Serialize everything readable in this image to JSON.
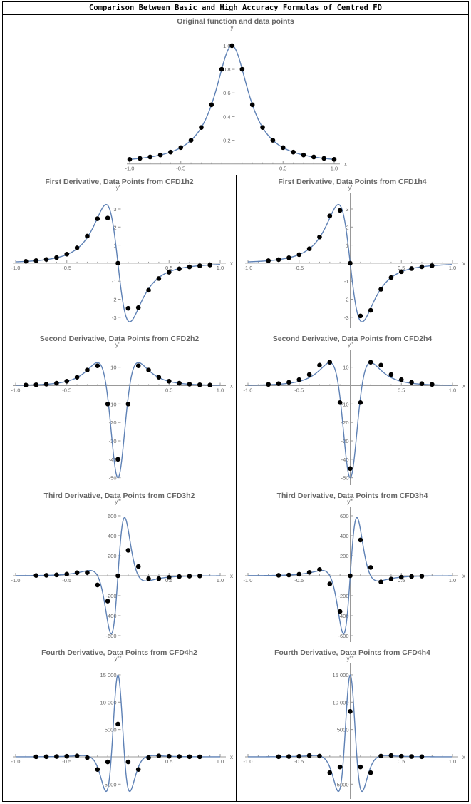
{
  "header": {
    "title": "Comparison Between Basic and High Accuracy Formulas of Centred FD"
  },
  "colors": {
    "curve": "#5e81b5",
    "points": "#000000",
    "axis": "#999999",
    "tick_label": "#666666",
    "plot_title": "#666666"
  },
  "chart_data": [
    {
      "id": "original",
      "type": "line+scatter",
      "title": "Original function and data points",
      "xlabel": "x",
      "ylabel": "y",
      "function": "1/(1+25x^2)",
      "derivative_order": 0,
      "xlim": [
        -1,
        1
      ],
      "ylim": [
        -0.08,
        1.09
      ],
      "xticks": [
        {
          "v": -1,
          "label": "-1.0"
        },
        {
          "v": -0.5,
          "label": "-0.5"
        },
        {
          "v": 0.5,
          "label": "0.5"
        },
        {
          "v": 1,
          "label": "1.0"
        }
      ],
      "yticks": [
        {
          "v": 0.2,
          "label": "0.2"
        },
        {
          "v": 0.4,
          "label": "0.4"
        },
        {
          "v": 0.6,
          "label": "0.6"
        },
        {
          "v": 0.8,
          "label": "0.8"
        },
        {
          "v": 1,
          "label": "1.0"
        }
      ],
      "points": {
        "x": [
          -1,
          -0.9,
          -0.8,
          -0.7,
          -0.6,
          -0.5,
          -0.4,
          -0.3,
          -0.2,
          -0.1,
          0,
          0.1,
          0.2,
          0.3,
          0.4,
          0.5,
          0.6,
          0.7,
          0.8,
          0.9,
          1
        ],
        "y": [
          0.0385,
          0.0471,
          0.0588,
          0.0755,
          0.1,
          0.1379,
          0.2,
          0.3077,
          0.5,
          0.8,
          1,
          0.8,
          0.5,
          0.3077,
          0.2,
          0.1379,
          0.1,
          0.0755,
          0.0588,
          0.0471,
          0.0385
        ]
      }
    },
    {
      "id": "d1h2",
      "type": "line+scatter",
      "title": "First Derivative, Data Points from CFD1h2",
      "xlabel": "x",
      "ylabel": "y'",
      "function": "1/(1+25x^2)",
      "derivative_order": 1,
      "xlim": [
        -1,
        1
      ],
      "ylim": [
        -3.6,
        3.75
      ],
      "xticks": [
        {
          "v": -1,
          "label": "-1.0"
        },
        {
          "v": -0.5,
          "label": "-0.5"
        },
        {
          "v": 0.5,
          "label": "0.5"
        },
        {
          "v": 1,
          "label": "1.0"
        }
      ],
      "yticks": [
        {
          "v": -3,
          "label": "-3"
        },
        {
          "v": -2,
          "label": "-2"
        },
        {
          "v": -1,
          "label": "-1"
        },
        {
          "v": 1,
          "label": "1"
        },
        {
          "v": 2,
          "label": "2"
        },
        {
          "v": 3,
          "label": "3"
        }
      ],
      "points": {
        "x": [
          -0.9,
          -0.8,
          -0.7,
          -0.6,
          -0.5,
          -0.4,
          -0.3,
          -0.2,
          -0.1,
          0,
          0.1,
          0.2,
          0.3,
          0.4,
          0.5,
          0.6,
          0.7,
          0.8,
          0.9
        ],
        "y": [
          0.1018,
          0.1421,
          0.2059,
          0.3123,
          0.5,
          0.8488,
          1.5,
          2.4615,
          2.5,
          0,
          -2.5,
          -2.4615,
          -1.5,
          -0.8488,
          -0.5,
          -0.3123,
          -0.2059,
          -0.1421,
          -0.1018
        ]
      }
    },
    {
      "id": "d1h4",
      "type": "line+scatter",
      "title": "First Derivative, Data Points from CFD1h4",
      "xlabel": "x",
      "ylabel": "y'",
      "function": "1/(1+25x^2)",
      "derivative_order": 1,
      "xlim": [
        -1,
        1
      ],
      "ylim": [
        -3.6,
        3.75
      ],
      "xticks": [
        {
          "v": -1,
          "label": "-1.0"
        },
        {
          "v": -0.5,
          "label": "-0.5"
        },
        {
          "v": 0.5,
          "label": "0.5"
        },
        {
          "v": 1,
          "label": "1.0"
        }
      ],
      "yticks": [
        {
          "v": -3,
          "label": "-3"
        },
        {
          "v": -2,
          "label": "-2"
        },
        {
          "v": -1,
          "label": "-1"
        },
        {
          "v": 1,
          "label": "1"
        },
        {
          "v": 2,
          "label": "2"
        },
        {
          "v": 3,
          "label": "3"
        }
      ],
      "points": {
        "x": [
          -0.8,
          -0.7,
          -0.6,
          -0.5,
          -0.4,
          -0.3,
          -0.2,
          -0.1,
          0,
          0.1,
          0.2,
          0.3,
          0.4,
          0.5,
          0.6,
          0.7,
          0.8
        ],
        "y": [
          0.1381,
          0.1988,
          0.2987,
          0.4732,
          0.7984,
          1.4483,
          2.6154,
          2.9231,
          0,
          -2.9231,
          -2.6154,
          -1.4483,
          -0.7984,
          -0.4732,
          -0.2987,
          -0.1988,
          -0.1381
        ]
      }
    },
    {
      "id": "d2h2",
      "type": "line+scatter",
      "title": "Second Derivative, Data Points from CFD2h2",
      "xlabel": "x",
      "ylabel": "y''",
      "function": "1/(1+25x^2)",
      "derivative_order": 2,
      "xlim": [
        -1,
        1
      ],
      "ylim": [
        -54,
        18
      ],
      "xticks": [
        {
          "v": -1,
          "label": "-1.0"
        },
        {
          "v": -0.5,
          "label": "-0.5"
        },
        {
          "v": 0.5,
          "label": "0.5"
        },
        {
          "v": 1,
          "label": "1.0"
        }
      ],
      "yticks": [
        {
          "v": 10,
          "label": "10"
        },
        {
          "v": -10,
          "label": "-10"
        },
        {
          "v": -20,
          "label": "-20"
        },
        {
          "v": -30,
          "label": "-30"
        },
        {
          "v": -40,
          "label": "-40"
        },
        {
          "v": -50,
          "label": "-50"
        }
      ],
      "points": {
        "x": [
          -0.9,
          -0.8,
          -0.7,
          -0.6,
          -0.5,
          -0.4,
          -0.3,
          -0.2,
          -0.1,
          0,
          0.1,
          0.2,
          0.3,
          0.4,
          0.5,
          0.6,
          0.7,
          0.8,
          0.9
        ],
        "y": [
          0.3168,
          0.4884,
          0.7881,
          1.3403,
          2.4138,
          4.5623,
          8.4615,
          10.769,
          -10,
          -40,
          -10,
          10.769,
          8.4615,
          4.5623,
          2.4138,
          1.3403,
          0.7881,
          0.4884,
          0.3168
        ]
      }
    },
    {
      "id": "d2h4",
      "type": "line+scatter",
      "title": "Second Derivative, Data Points from CFD2h4",
      "xlabel": "x",
      "ylabel": "y''",
      "function": "1/(1+25x^2)",
      "derivative_order": 2,
      "xlim": [
        -1,
        1
      ],
      "ylim": [
        -54,
        18
      ],
      "xticks": [
        {
          "v": -1,
          "label": "-1.0"
        },
        {
          "v": -0.5,
          "label": "-0.5"
        },
        {
          "v": 0.5,
          "label": "0.5"
        },
        {
          "v": 1,
          "label": "1.0"
        }
      ],
      "yticks": [
        {
          "v": 10,
          "label": "10"
        },
        {
          "v": -10,
          "label": "-10"
        },
        {
          "v": -20,
          "label": "-20"
        },
        {
          "v": -30,
          "label": "-30"
        },
        {
          "v": -40,
          "label": "-40"
        },
        {
          "v": -50,
          "label": "-50"
        }
      ],
      "points": {
        "x": [
          -0.8,
          -0.7,
          -0.6,
          -0.5,
          -0.4,
          -0.3,
          -0.2,
          -0.1,
          0,
          0.1,
          0.2,
          0.3,
          0.4,
          0.5,
          0.6,
          0.7,
          0.8
        ],
        "y": [
          0.6821,
          1.0831,
          1.8141,
          3.2216,
          6.019,
          11.094,
          12.692,
          -9.2308,
          -45,
          -9.2308,
          12.692,
          11.094,
          6.019,
          3.2216,
          1.8141,
          1.0831,
          0.6821
        ]
      }
    },
    {
      "id": "d3h2",
      "type": "line+scatter",
      "title": "Third Derivative, Data Points from CFD3h2",
      "xlabel": "x",
      "ylabel": "y'''",
      "function": "1/(1+25x^2)",
      "derivative_order": 3,
      "xlim": [
        -1,
        1
      ],
      "ylim": [
        -664,
        664
      ],
      "xticks": [
        {
          "v": -1,
          "label": "-1.0"
        },
        {
          "v": -0.5,
          "label": "-0.5"
        },
        {
          "v": 0.5,
          "label": "0.5"
        },
        {
          "v": 1,
          "label": "1.0"
        }
      ],
      "yticks": [
        {
          "v": 600,
          "label": "600"
        },
        {
          "v": 400,
          "label": "400"
        },
        {
          "v": 200,
          "label": "200"
        },
        {
          "v": -200,
          "label": "-200"
        },
        {
          "v": -400,
          "label": "-400"
        },
        {
          "v": -600,
          "label": "-600"
        }
      ],
      "points": {
        "x": [
          -0.8,
          -0.7,
          -0.6,
          -0.5,
          -0.4,
          -0.3,
          -0.2,
          -0.1,
          0,
          0.1,
          0.2,
          0.3,
          0.4,
          0.5,
          0.6,
          0.7,
          0.8
        ],
        "y": [
          2.36,
          4.26,
          8.13,
          16.11,
          30.24,
          31.03,
          -92.31,
          -253.85,
          0,
          253.85,
          92.31,
          -31.03,
          -30.24,
          -16.11,
          -8.13,
          -4.26,
          -2.36
        ]
      }
    },
    {
      "id": "d3h4",
      "type": "line+scatter",
      "title": "Third Derivative, Data Points from CFD3h4",
      "xlabel": "x",
      "ylabel": "y'''",
      "function": "1/(1+25x^2)",
      "derivative_order": 3,
      "xlim": [
        -1,
        1
      ],
      "ylim": [
        -664,
        664
      ],
      "xticks": [
        {
          "v": -1,
          "label": "-1.0"
        },
        {
          "v": -0.5,
          "label": "-0.5"
        },
        {
          "v": 0.5,
          "label": "0.5"
        },
        {
          "v": 1,
          "label": "1.0"
        }
      ],
      "yticks": [
        {
          "v": 600,
          "label": "600"
        },
        {
          "v": 400,
          "label": "400"
        },
        {
          "v": 200,
          "label": "200"
        },
        {
          "v": -200,
          "label": "-200"
        },
        {
          "v": -400,
          "label": "-400"
        },
        {
          "v": -600,
          "label": "-600"
        }
      ],
      "points": {
        "x": [
          -0.7,
          -0.6,
          -0.5,
          -0.4,
          -0.3,
          -0.2,
          -0.1,
          0,
          0.1,
          0.2,
          0.3,
          0.4,
          0.5,
          0.6,
          0.7
        ],
        "y": [
          3.77,
          7.1,
          14.57,
          33.57,
          62.07,
          -82.76,
          -357.69,
          0,
          357.69,
          82.76,
          -62.07,
          -33.57,
          -14.57,
          -7.1,
          -3.77
        ]
      }
    },
    {
      "id": "d4h2",
      "type": "line+scatter",
      "title": "Fourth Derivative, Data Points from CFD4h2",
      "xlabel": "x",
      "ylabel": "y''''",
      "function": "1/(1+25x^2)",
      "derivative_order": 4,
      "xlim": [
        -1,
        1
      ],
      "ylim": [
        -7700,
        16560
      ],
      "xticks": [
        {
          "v": -1,
          "label": "-1.0"
        },
        {
          "v": -0.5,
          "label": "-0.5"
        },
        {
          "v": 0.5,
          "label": "0.5"
        },
        {
          "v": 1,
          "label": "1.0"
        }
      ],
      "yticks": [
        {
          "v": 15000,
          "label": "15 000"
        },
        {
          "v": 10000,
          "label": "10 000"
        },
        {
          "v": 5000,
          "label": "5000"
        },
        {
          "v": -5000,
          "label": "-5000"
        }
      ],
      "points": {
        "x": [
          -0.8,
          -0.7,
          -0.6,
          -0.5,
          -0.4,
          -0.3,
          -0.2,
          -0.1,
          0,
          0.1,
          0.2,
          0.3,
          0.4,
          0.5,
          0.6,
          0.7,
          0.8
        ],
        "y": [
          12.8,
          25.3,
          52.1,
          107.5,
          175.1,
          -159.2,
          -2307.7,
          -923.1,
          6000,
          -923.1,
          -2307.7,
          -159.2,
          175.1,
          107.5,
          52.1,
          25.3,
          12.8
        ]
      }
    },
    {
      "id": "d4h4",
      "type": "line+scatter",
      "title": "Fourth Derivative, Data Points from CFD4h4",
      "xlabel": "x",
      "ylabel": "y''''",
      "function": "1/(1+25x^2)",
      "derivative_order": 4,
      "xlim": [
        -1,
        1
      ],
      "ylim": [
        -7700,
        16560
      ],
      "xticks": [
        {
          "v": -1,
          "label": "-1.0"
        },
        {
          "v": -0.5,
          "label": "-0.5"
        },
        {
          "v": 0.5,
          "label": "0.5"
        },
        {
          "v": 1,
          "label": "1.0"
        }
      ],
      "yticks": [
        {
          "v": 15000,
          "label": "15 000"
        },
        {
          "v": 10000,
          "label": "10 000"
        },
        {
          "v": 5000,
          "label": "5000"
        },
        {
          "v": -5000,
          "label": "-5000"
        }
      ],
      "points": {
        "x": [
          -0.7,
          -0.6,
          -0.5,
          -0.4,
          -0.3,
          -0.2,
          -0.1,
          0,
          0.1,
          0.2,
          0.3,
          0.4,
          0.5,
          0.6,
          0.7
        ],
        "y": [
          22.9,
          47.4,
          105.5,
          242.0,
          143.2,
          -2896.6,
          -1846.2,
          8307.7,
          -1846.2,
          -2896.6,
          143.2,
          242.0,
          105.5,
          47.4,
          22.9
        ]
      }
    }
  ]
}
